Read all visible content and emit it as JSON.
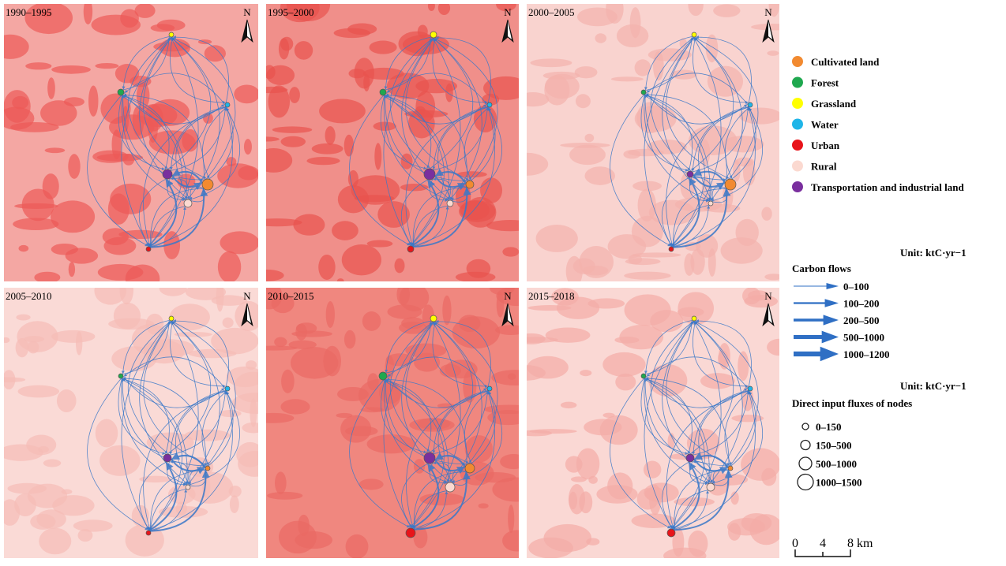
{
  "panels": [
    {
      "title": "1990–1995",
      "north": "N"
    },
    {
      "title": "1995–2000",
      "north": "N"
    },
    {
      "title": "2000–2005",
      "north": "N"
    },
    {
      "title": "2005–2010",
      "north": "N"
    },
    {
      "title": "2010–2015",
      "north": "N"
    },
    {
      "title": "2015–2018",
      "north": "N"
    }
  ],
  "land_types": [
    {
      "label": "Cultivated land",
      "color": "#f28a30"
    },
    {
      "label": "Forest",
      "color": "#1fa84f"
    },
    {
      "label": "Grassland",
      "color": "#ffff00"
    },
    {
      "label": "Water",
      "color": "#1fb5e8"
    },
    {
      "label": "Urban",
      "color": "#e8141a"
    },
    {
      "label": "Rural",
      "color": "#fbd9d0"
    },
    {
      "label": "Transportation and industrial land",
      "color": "#7a2f9e"
    }
  ],
  "carbon_flows": {
    "unit": "Unit: ktC·yr−1",
    "title": "Carbon flows",
    "classes": [
      "0–100",
      "100–200",
      "200–500",
      "500–1000",
      "1000–1200"
    ]
  },
  "node_fluxes": {
    "unit": "Unit: ktC·yr−1",
    "title": "Direct input fluxes of nodes",
    "classes": [
      "0–150",
      "150–500",
      "500–1000",
      "1000–1500"
    ]
  },
  "scale_bar": {
    "labels": [
      "0",
      "4",
      "8 km"
    ]
  }
}
